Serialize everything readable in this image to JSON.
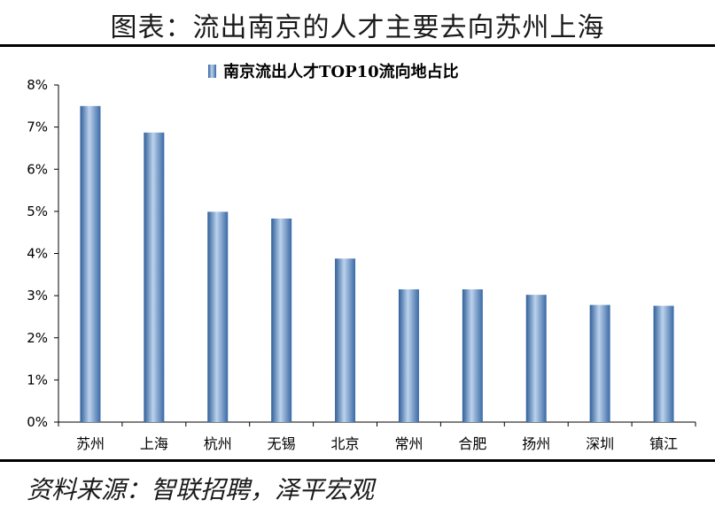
{
  "figure": {
    "title": "图表：流出南京的人才主要去向苏州上海",
    "source": "资料来源：智联招聘，泽平宏观"
  },
  "chart_data": {
    "type": "bar",
    "categories": [
      "苏州",
      "上海",
      "杭州",
      "无锡",
      "北京",
      "常州",
      "合肥",
      "扬州",
      "深圳",
      "镇江"
    ],
    "series": [
      {
        "name": "南京流出人才TOP10流向地占比",
        "values": [
          7.5,
          6.87,
          4.99,
          4.83,
          3.88,
          3.15,
          3.15,
          3.02,
          2.78,
          2.76
        ]
      }
    ],
    "yticks": [
      "0%",
      "1%",
      "2%",
      "3%",
      "4%",
      "5%",
      "6%",
      "7%",
      "8%"
    ],
    "ylim": [
      0,
      8
    ],
    "unit": "%",
    "legend_position": "top",
    "grid": false,
    "bar_color": "#4A7EBB"
  }
}
